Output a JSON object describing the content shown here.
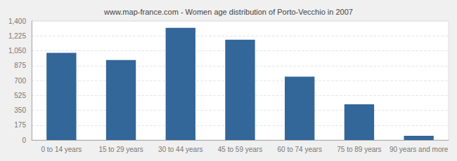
{
  "chart_data": {
    "type": "bar",
    "title": "www.map-france.com - Women age distribution of Porto-Vecchio in 2007",
    "categories": [
      "0 to 14 years",
      "15 to 29 years",
      "30 to 44 years",
      "45 to 59 years",
      "60 to 74 years",
      "75 to 89 years",
      "90 years and more"
    ],
    "values": [
      1025,
      940,
      1320,
      1180,
      745,
      420,
      50
    ],
    "color": "#336699",
    "ylim": [
      0,
      1400
    ],
    "yticks": [
      0,
      175,
      350,
      525,
      700,
      875,
      1050,
      1225,
      1400
    ],
    "grid": true
  }
}
